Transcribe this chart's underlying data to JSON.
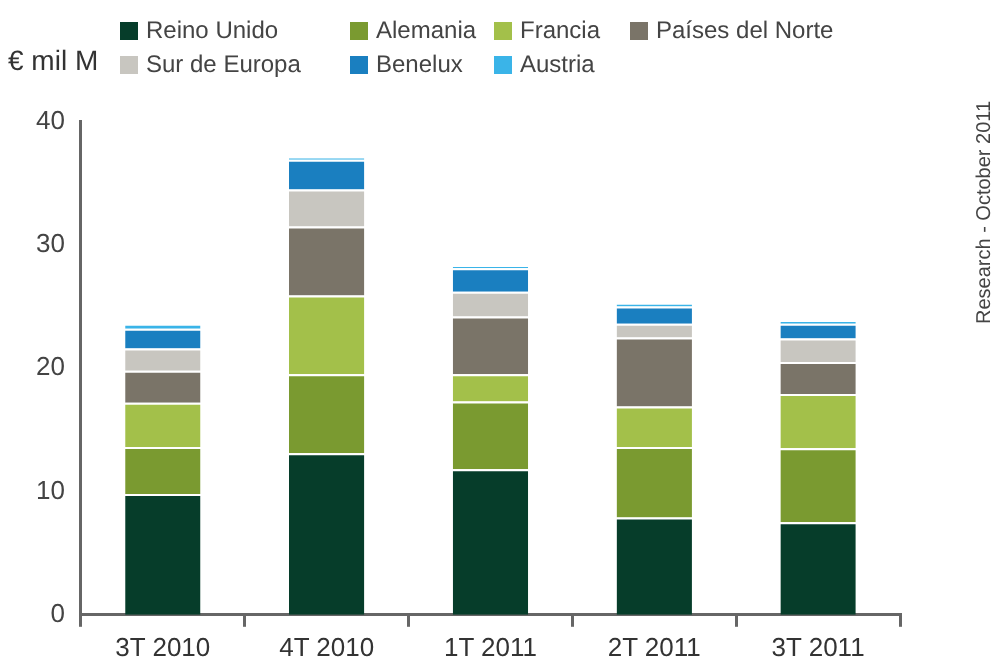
{
  "chart_data": {
    "type": "bar",
    "stacked": true,
    "ylabel": "€ mil M",
    "categories": [
      "3T 2010",
      "4T 2010",
      "1T 2011",
      "2T 2011",
      "3T 2011"
    ],
    "series": [
      {
        "name": "Reino Unido",
        "color": "#063d2a",
        "values": [
          9.8,
          13.1,
          11.8,
          7.9,
          7.5
        ]
      },
      {
        "name": "Alemania",
        "color": "#7a9a30",
        "values": [
          3.8,
          6.4,
          5.5,
          5.7,
          6.0
        ]
      },
      {
        "name": "Francia",
        "color": "#a3c04a",
        "values": [
          3.6,
          6.4,
          2.2,
          3.3,
          4.4
        ]
      },
      {
        "name": "Países del Norte",
        "color": "#7a7468",
        "values": [
          2.6,
          5.6,
          4.7,
          5.6,
          2.6
        ]
      },
      {
        "name": "Sur de Europa",
        "color": "#c8c6c0",
        "values": [
          1.8,
          3.0,
          2.0,
          1.1,
          1.9
        ]
      },
      {
        "name": "Benelux",
        "color": "#1a7fc0",
        "values": [
          1.6,
          2.4,
          1.9,
          1.4,
          1.2
        ]
      },
      {
        "name": "Austria",
        "color": "#3ab4e8",
        "values": [
          0.4,
          0.2,
          0.2,
          0.3,
          0.3
        ]
      }
    ],
    "ylim": [
      0,
      40
    ],
    "yticks": [
      0,
      10,
      20,
      30,
      40
    ],
    "grid": false,
    "legend": "top",
    "annotations": [
      "Research - October 2011"
    ]
  }
}
